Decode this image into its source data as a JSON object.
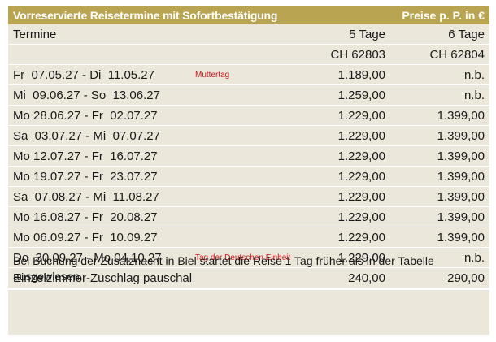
{
  "header": {
    "title": "Vorreservierte Reisetermine mit Sofortbestätigung",
    "price_note": "Preise p. P. in €"
  },
  "columns": {
    "dates": "Termine",
    "tour1": {
      "duration": "5 Tage",
      "code": "CH 62803"
    },
    "tour2": {
      "duration": "6 Tage",
      "code": "CH 62804"
    }
  },
  "rows": [
    {
      "dates": "Fr  07.05.27 - Di  11.05.27",
      "note": "Muttertag",
      "price1": "1.189,00",
      "price2": "n.b."
    },
    {
      "dates": "Mi  09.06.27 - So  13.06.27",
      "note": null,
      "price1": "1.259,00",
      "price2": "n.b."
    },
    {
      "dates": "Mo 28.06.27 - Fr  02.07.27",
      "note": null,
      "price1": "1.229,00",
      "price2": "1.399,00"
    },
    {
      "dates": "Sa  03.07.27 - Mi  07.07.27",
      "note": null,
      "price1": "1.229,00",
      "price2": "1.399,00"
    },
    {
      "dates": "Mo 12.07.27 - Fr  16.07.27",
      "note": null,
      "price1": "1.229,00",
      "price2": "1.399,00"
    },
    {
      "dates": "Mo 19.07.27 - Fr  23.07.27",
      "note": null,
      "price1": "1.229,00",
      "price2": "1.399,00"
    },
    {
      "dates": "Sa  07.08.27 - Mi  11.08.27",
      "note": null,
      "price1": "1.229,00",
      "price2": "1.399,00"
    },
    {
      "dates": "Mo 16.08.27 - Fr  20.08.27",
      "note": null,
      "price1": "1.229,00",
      "price2": "1.399,00"
    },
    {
      "dates": "Mo 06.09.27 - Fr  10.09.27",
      "note": null,
      "price1": "1.229,00",
      "price2": "1.399,00"
    },
    {
      "dates": "Do  30.09.27 - Mo 04.10.27",
      "note": "Tag der Deutschen Einheit",
      "price1": "1.229,00",
      "price2": "n.b."
    }
  ],
  "surcharge": {
    "label": "Einzelzimmer-Zuschlag pauschal",
    "price1": "240,00",
    "price2": "290,00"
  },
  "footnote": "Bei Buchung der Zusatznacht in Biel startet die Reise 1 Tag früher als in der Tabelle ausgewiesen."
}
